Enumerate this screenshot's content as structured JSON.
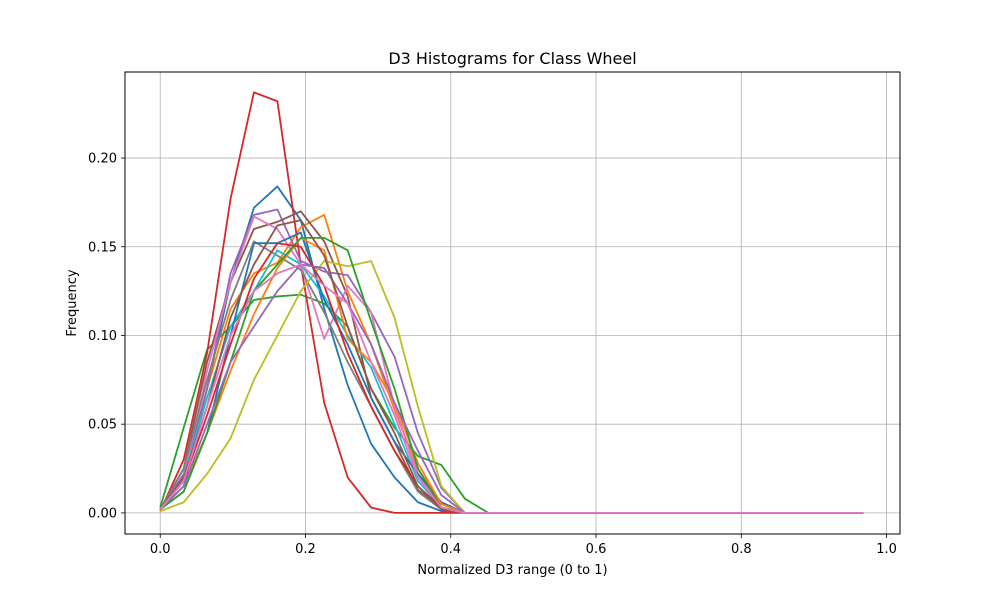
{
  "chart_data": {
    "type": "line",
    "title": "D3 Histograms for Class Wheel",
    "xlabel": "Normalized D3 range (0 to 1)",
    "ylabel": "Frequency",
    "xlim": [
      -0.0485,
      1.0185
    ],
    "ylim": [
      -0.0119,
      0.2485
    ],
    "x_ticks": [
      0.0,
      0.2,
      0.4,
      0.6,
      0.8,
      1.0
    ],
    "x_tick_labels": [
      "0.0",
      "0.2",
      "0.4",
      "0.6",
      "0.8",
      "1.0"
    ],
    "y_ticks": [
      0.0,
      0.05,
      0.1,
      0.15,
      0.2
    ],
    "y_tick_labels": [
      "0.00",
      "0.05",
      "0.10",
      "0.15",
      "0.20"
    ],
    "grid": true,
    "legend": false,
    "x": [
      0.0,
      0.0323,
      0.0645,
      0.0968,
      0.129,
      0.1613,
      0.1935,
      0.2258,
      0.2581,
      0.2903,
      0.3226,
      0.3548,
      0.3871,
      0.4194,
      0.4516,
      0.4839,
      0.5161,
      0.5484,
      0.5806,
      0.6129,
      0.6452,
      0.6774,
      0.7097,
      0.7419,
      0.7742,
      0.8065,
      0.8387,
      0.871,
      0.9032,
      0.9355,
      0.9677
    ],
    "series": [
      {
        "color": "#1f77b4",
        "values": [
          0.002,
          0.015,
          0.07,
          0.13,
          0.172,
          0.184,
          0.165,
          0.115,
          0.072,
          0.039,
          0.02,
          0.006,
          0.001,
          0.0,
          0.0,
          0.0,
          0.0,
          0.0,
          0.0,
          0.0,
          0.0,
          0.0,
          0.0,
          0.0,
          0.0,
          0.0,
          0.0,
          0.0,
          0.0,
          0.0,
          0.0
        ]
      },
      {
        "color": "#ff7f0e",
        "values": [
          0.002,
          0.02,
          0.07,
          0.115,
          0.135,
          0.141,
          0.161,
          0.168,
          0.125,
          0.095,
          0.058,
          0.025,
          0.005,
          0.0,
          0.0,
          0.0,
          0.0,
          0.0,
          0.0,
          0.0,
          0.0,
          0.0,
          0.0,
          0.0,
          0.0,
          0.0,
          0.0,
          0.0,
          0.0,
          0.0,
          0.0
        ]
      },
      {
        "color": "#2ca02c",
        "values": [
          0.003,
          0.048,
          0.092,
          0.105,
          0.12,
          0.122,
          0.123,
          0.118,
          0.105,
          0.07,
          0.048,
          0.032,
          0.027,
          0.008,
          0.0,
          0.0,
          0.0,
          0.0,
          0.0,
          0.0,
          0.0,
          0.0,
          0.0,
          0.0,
          0.0,
          0.0,
          0.0,
          0.0,
          0.0,
          0.0,
          0.0
        ]
      },
      {
        "color": "#d62728",
        "values": [
          0.001,
          0.03,
          0.09,
          0.177,
          0.237,
          0.232,
          0.14,
          0.062,
          0.02,
          0.003,
          0.0,
          0.0,
          0.0,
          0.0,
          0.0,
          0.0,
          0.0,
          0.0,
          0.0,
          0.0,
          0.0,
          0.0,
          0.0,
          0.0,
          0.0,
          0.0,
          0.0,
          0.0,
          0.0,
          0.0,
          0.0
        ]
      },
      {
        "color": "#9467bd",
        "values": [
          0.002,
          0.022,
          0.07,
          0.135,
          0.168,
          0.171,
          0.142,
          0.136,
          0.134,
          0.113,
          0.088,
          0.045,
          0.014,
          0.0,
          0.0,
          0.0,
          0.0,
          0.0,
          0.0,
          0.0,
          0.0,
          0.0,
          0.0,
          0.0,
          0.0,
          0.0,
          0.0,
          0.0,
          0.0,
          0.0,
          0.0
        ]
      },
      {
        "color": "#8c564b",
        "values": [
          0.002,
          0.025,
          0.085,
          0.13,
          0.16,
          0.164,
          0.17,
          0.153,
          0.122,
          0.065,
          0.04,
          0.013,
          0.003,
          0.0,
          0.0,
          0.0,
          0.0,
          0.0,
          0.0,
          0.0,
          0.0,
          0.0,
          0.0,
          0.0,
          0.0,
          0.0,
          0.0,
          0.0,
          0.0,
          0.0,
          0.0
        ]
      },
      {
        "color": "#e377c2",
        "values": [
          0.002,
          0.02,
          0.08,
          0.13,
          0.167,
          0.16,
          0.14,
          0.098,
          0.128,
          0.113,
          0.06,
          0.022,
          0.003,
          0.0,
          0.0,
          0.0,
          0.0,
          0.0,
          0.0,
          0.0,
          0.0,
          0.0,
          0.0,
          0.0,
          0.0,
          0.0,
          0.0,
          0.0,
          0.0,
          0.0,
          0.0
        ]
      },
      {
        "color": "#7f7f7f",
        "values": [
          0.002,
          0.025,
          0.075,
          0.12,
          0.153,
          0.145,
          0.137,
          0.113,
          0.085,
          0.06,
          0.035,
          0.012,
          0.002,
          0.0,
          0.0,
          0.0,
          0.0,
          0.0,
          0.0,
          0.0,
          0.0,
          0.0,
          0.0,
          0.0,
          0.0,
          0.0,
          0.0,
          0.0,
          0.0,
          0.0,
          0.0
        ]
      },
      {
        "color": "#bcbd22",
        "values": [
          0.001,
          0.006,
          0.022,
          0.042,
          0.075,
          0.1,
          0.125,
          0.142,
          0.139,
          0.142,
          0.11,
          0.06,
          0.015,
          0.0,
          0.0,
          0.0,
          0.0,
          0.0,
          0.0,
          0.0,
          0.0,
          0.0,
          0.0,
          0.0,
          0.0,
          0.0,
          0.0,
          0.0,
          0.0,
          0.0,
          0.0
        ]
      },
      {
        "color": "#17becf",
        "values": [
          0.002,
          0.02,
          0.065,
          0.105,
          0.125,
          0.148,
          0.14,
          0.122,
          0.1,
          0.082,
          0.05,
          0.018,
          0.003,
          0.0,
          0.0,
          0.0,
          0.0,
          0.0,
          0.0,
          0.0,
          0.0,
          0.0,
          0.0,
          0.0,
          0.0,
          0.0,
          0.0,
          0.0,
          0.0,
          0.0,
          0.0
        ]
      },
      {
        "color": "#1f77b4",
        "values": [
          0.002,
          0.012,
          0.045,
          0.1,
          0.152,
          0.152,
          0.158,
          0.12,
          0.095,
          0.065,
          0.04,
          0.022,
          0.006,
          0.0,
          0.0,
          0.0,
          0.0,
          0.0,
          0.0,
          0.0,
          0.0,
          0.0,
          0.0,
          0.0,
          0.0,
          0.0,
          0.0,
          0.0,
          0.0,
          0.0,
          0.0
        ]
      },
      {
        "color": "#ff7f0e",
        "values": [
          0.002,
          0.015,
          0.045,
          0.08,
          0.112,
          0.138,
          0.155,
          0.148,
          0.098,
          0.085,
          0.062,
          0.028,
          0.005,
          0.0,
          0.0,
          0.0,
          0.0,
          0.0,
          0.0,
          0.0,
          0.0,
          0.0,
          0.0,
          0.0,
          0.0,
          0.0,
          0.0,
          0.0,
          0.0,
          0.0,
          0.0
        ]
      },
      {
        "color": "#2ca02c",
        "values": [
          0.002,
          0.012,
          0.045,
          0.085,
          0.125,
          0.14,
          0.155,
          0.155,
          0.148,
          0.108,
          0.07,
          0.025,
          0.003,
          0.0,
          0.0,
          0.0,
          0.0,
          0.0,
          0.0,
          0.0,
          0.0,
          0.0,
          0.0,
          0.0,
          0.0,
          0.0,
          0.0,
          0.0,
          0.0,
          0.0,
          0.0
        ]
      },
      {
        "color": "#d62728",
        "values": [
          0.002,
          0.018,
          0.055,
          0.095,
          0.132,
          0.152,
          0.15,
          0.128,
          0.09,
          0.06,
          0.035,
          0.015,
          0.003,
          0.0,
          0.0,
          0.0,
          0.0,
          0.0,
          0.0,
          0.0,
          0.0,
          0.0,
          0.0,
          0.0,
          0.0,
          0.0,
          0.0,
          0.0,
          0.0,
          0.0,
          0.0
        ]
      },
      {
        "color": "#9467bd",
        "values": [
          0.002,
          0.015,
          0.05,
          0.085,
          0.105,
          0.125,
          0.14,
          0.138,
          0.118,
          0.095,
          0.062,
          0.035,
          0.01,
          0.0,
          0.0,
          0.0,
          0.0,
          0.0,
          0.0,
          0.0,
          0.0,
          0.0,
          0.0,
          0.0,
          0.0,
          0.0,
          0.0,
          0.0,
          0.0,
          0.0,
          0.0
        ]
      },
      {
        "color": "#8c564b",
        "values": [
          0.002,
          0.02,
          0.06,
          0.11,
          0.14,
          0.162,
          0.165,
          0.145,
          0.105,
          0.07,
          0.045,
          0.015,
          0.002,
          0.0,
          0.0,
          0.0,
          0.0,
          0.0,
          0.0,
          0.0,
          0.0,
          0.0,
          0.0,
          0.0,
          0.0,
          0.0,
          0.0,
          0.0,
          0.0,
          0.0,
          0.0
        ]
      },
      {
        "color": "#e377c2",
        "values": [
          0.002,
          0.018,
          0.06,
          0.1,
          0.125,
          0.135,
          0.14,
          0.128,
          0.118,
          0.085,
          0.055,
          0.02,
          0.003,
          0.0,
          0.0,
          0.0,
          0.0,
          0.0,
          0.0,
          0.0,
          0.0,
          0.0,
          0.0,
          0.0,
          0.0,
          0.0,
          0.0,
          0.0,
          0.0,
          0.0,
          0.0
        ]
      }
    ]
  }
}
